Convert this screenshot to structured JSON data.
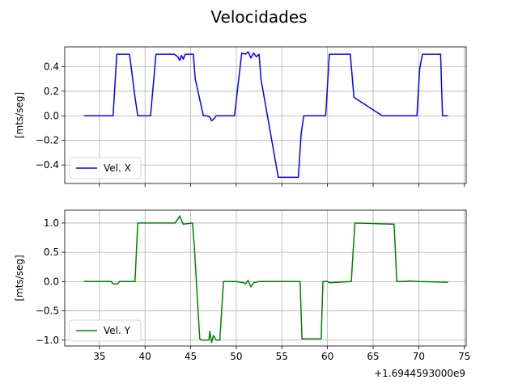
{
  "figure_title": "Velocidades",
  "x_offset_label": "+1.6944593000e9",
  "chart_data": [
    {
      "type": "line",
      "ylabel": "[mts/seg]",
      "xlim": [
        31.2,
        75.2
      ],
      "ylim": [
        -0.55,
        0.56
      ],
      "x_ticks": [
        35,
        40,
        45,
        50,
        55,
        60,
        65,
        70,
        75
      ],
      "y_ticks": [
        -0.4,
        -0.2,
        0.0,
        0.2,
        0.4
      ],
      "y_tick_labels": [
        "−0.4",
        "−0.2",
        "0.0",
        "0.2",
        "0.4"
      ],
      "show_x_tick_labels": false,
      "grid": true,
      "legend_position": "lower-left",
      "series": [
        {
          "name": "Vel. X",
          "color": "#0000ff",
          "x": [
            33.3,
            36.5,
            36.9,
            38.3,
            38.9,
            39.2,
            40.6,
            41.2,
            43.2,
            43.6,
            43.8,
            44.0,
            44.2,
            44.4,
            45.3,
            45.5,
            46.4,
            46.8,
            47.1,
            47.3,
            47.6,
            47.8,
            48.2,
            49.8,
            50.6,
            51.0,
            51.3,
            51.6,
            51.9,
            52.2,
            52.5,
            52.7,
            54.6,
            56.8,
            57.1,
            57.4,
            59.8,
            60.2,
            62.5,
            62.9,
            66.0,
            66.5,
            67.1,
            69.8,
            70.1,
            70.4,
            72.4,
            72.6,
            73.2
          ],
          "y": [
            0.0,
            0.0,
            0.5,
            0.5,
            0.15,
            0.0,
            0.0,
            0.5,
            0.5,
            0.48,
            0.45,
            0.49,
            0.46,
            0.5,
            0.5,
            0.3,
            0.0,
            0.0,
            -0.01,
            -0.04,
            -0.02,
            0.0,
            0.0,
            0.0,
            0.51,
            0.5,
            0.52,
            0.47,
            0.51,
            0.48,
            0.5,
            0.3,
            -0.5,
            -0.5,
            -0.15,
            0.0,
            0.0,
            0.5,
            0.5,
            0.15,
            0.0,
            0.0,
            0.0,
            0.0,
            0.38,
            0.5,
            0.5,
            0.0,
            0.0
          ]
        }
      ]
    },
    {
      "type": "line",
      "ylabel": "[mts/seg]",
      "xlim": [
        31.2,
        75.2
      ],
      "ylim": [
        -1.1,
        1.22
      ],
      "x_ticks": [
        35,
        40,
        45,
        50,
        55,
        60,
        65,
        70,
        75
      ],
      "x_tick_labels": [
        "35",
        "40",
        "45",
        "50",
        "55",
        "60",
        "65",
        "70",
        "75"
      ],
      "y_ticks": [
        -1.0,
        -0.5,
        0.0,
        0.5,
        1.0
      ],
      "y_tick_labels": [
        "−1.0",
        "−0.5",
        "0.0",
        "0.5",
        "1.0"
      ],
      "show_x_tick_labels": true,
      "grid": true,
      "legend_position": "lower-left",
      "series": [
        {
          "name": "Vel. Y",
          "color": "#008000",
          "x": [
            33.3,
            36.3,
            36.5,
            37.0,
            37.2,
            38.9,
            39.2,
            43.3,
            43.6,
            43.8,
            44.0,
            44.2,
            44.6,
            45.2,
            45.4,
            46.0,
            46.2,
            47.0,
            47.1,
            47.3,
            47.5,
            47.8,
            48.2,
            48.6,
            50.0,
            50.8,
            51.0,
            51.3,
            51.6,
            51.9,
            52.5,
            57.0,
            57.2,
            59.3,
            59.5,
            60.0,
            60.2,
            62.6,
            63.0,
            67.3,
            67.6,
            68.5,
            69.0,
            70.0,
            73.2
          ],
          "y": [
            0.0,
            0.0,
            -0.04,
            -0.04,
            0.0,
            0.0,
            1.0,
            1.0,
            1.07,
            1.12,
            1.04,
            0.98,
            0.99,
            1.0,
            0.6,
            -0.98,
            -1.0,
            -1.0,
            -0.85,
            -1.04,
            -0.92,
            -1.0,
            -1.0,
            0.0,
            0.0,
            -0.02,
            -0.04,
            0.02,
            -0.09,
            -0.02,
            0.0,
            0.0,
            -0.98,
            -0.98,
            0.0,
            0.0,
            -0.02,
            0.0,
            1.0,
            0.98,
            0.0,
            0.0,
            0.01,
            0.0,
            -0.01
          ]
        }
      ]
    }
  ]
}
